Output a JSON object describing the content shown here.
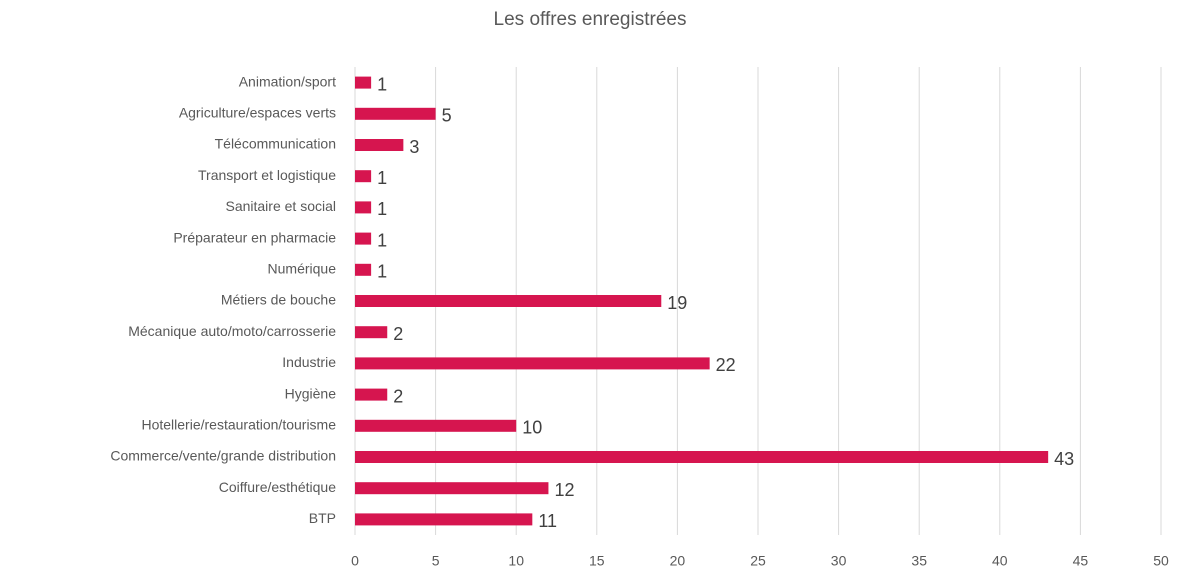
{
  "chart_data": {
    "type": "hbar",
    "title": "Les offres enregistrées",
    "categories": [
      "Animation/sport",
      "Agriculture/espaces verts",
      "Télécommunication",
      "Transport et logistique",
      "Sanitaire et social",
      "Préparateur en pharmacie",
      "Numérique",
      "Métiers de bouche",
      "Mécanique auto/moto/carrosserie",
      "Industrie",
      "Hygiène",
      "Hotellerie/restauration/tourisme",
      "Commerce/vente/grande distribution",
      "Coiffure/esthétique",
      "BTP"
    ],
    "values": [
      1,
      5,
      3,
      1,
      1,
      1,
      1,
      19,
      2,
      22,
      2,
      10,
      43,
      12,
      11
    ],
    "color": "#d6154f",
    "xlim": [
      0,
      50
    ],
    "xticks": [
      0,
      5,
      10,
      15,
      20,
      25,
      30,
      35,
      40,
      45,
      50
    ],
    "grid": true
  }
}
